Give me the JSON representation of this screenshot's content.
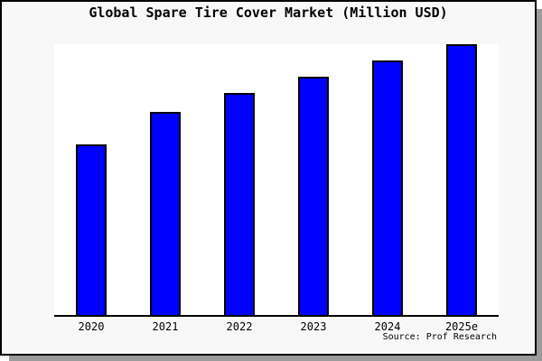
{
  "title": "Global Spare Tire Cover Market (Million USD)",
  "source": "Source: Prof Research",
  "colors": {
    "bar_fill": "#0000ff",
    "bar_border": "#000000",
    "figure_background": "#f8f8f8",
    "plot_background": "#ffffff",
    "frame_border": "#000000",
    "shadow": "#9b9b9b"
  },
  "chart_data": {
    "type": "bar",
    "categories": [
      "2020",
      "2021",
      "2022",
      "2023",
      "2024",
      "2025e"
    ],
    "values": [
      63,
      75,
      82,
      88,
      94,
      100
    ],
    "values_note": "y-axis has no ticks or labels; values are relative bar heights normalized to 2025e = 100",
    "title": "Global Spare Tire Cover Market (Million USD)",
    "xlabel": "",
    "ylabel": "",
    "ylim": [
      0,
      100
    ],
    "grid": false,
    "legend": null,
    "bar_color": "#0000ff",
    "annotations": [
      "Source: Prof Research"
    ]
  }
}
